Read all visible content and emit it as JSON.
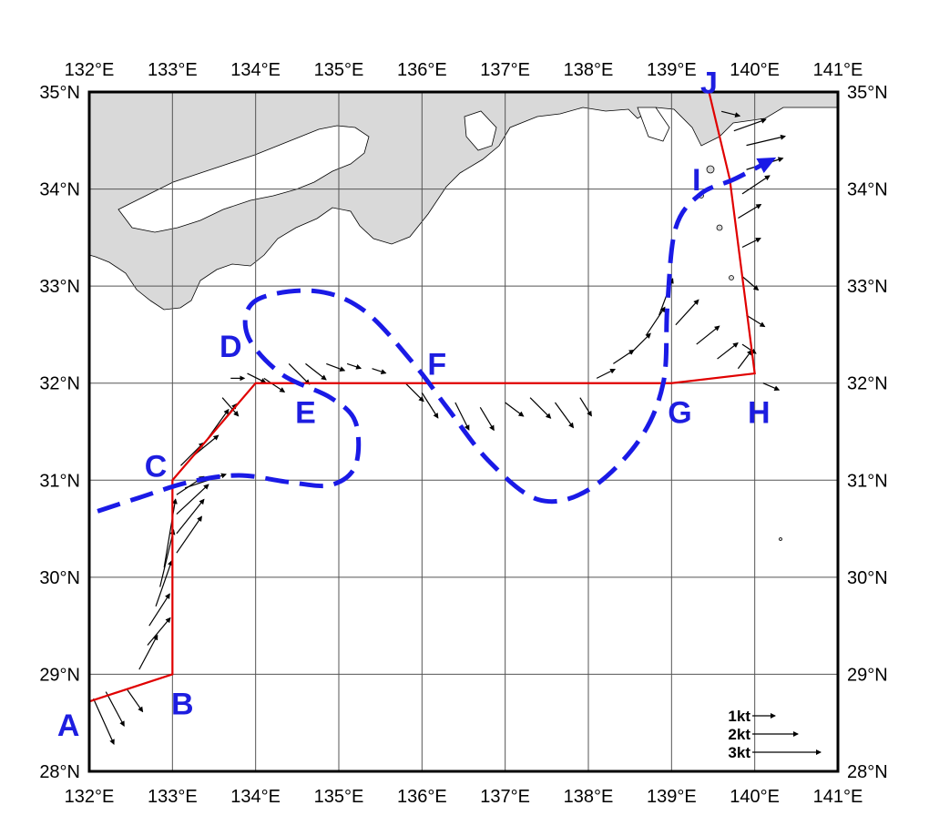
{
  "axes": {
    "lon_labels": [
      "132°E",
      "133°E",
      "134°E",
      "135°E",
      "136°E",
      "137°E",
      "138°E",
      "139°E",
      "140°E",
      "141°E"
    ],
    "lat_labels": [
      "28°N",
      "29°N",
      "30°N",
      "31°N",
      "32°N",
      "33°N",
      "34°N",
      "35°N"
    ],
    "lon_range": [
      132,
      141
    ],
    "lat_range": [
      28,
      35
    ],
    "grid": true
  },
  "colors": {
    "land": "#d9d9d9",
    "survey_line": "#e00000",
    "current_path": "#1a1ae6",
    "point_labels": "#1d1de0",
    "vectors": "#000000"
  },
  "survey_route": {
    "points": [
      {
        "name": "A",
        "lon": 132.0,
        "lat": 28.72
      },
      {
        "name": "B",
        "lon": 133.0,
        "lat": 29.0
      },
      {
        "name": "C",
        "lon": 133.0,
        "lat": 31.0
      },
      {
        "name": "D",
        "lon": 134.0,
        "lat": 32.0
      },
      {
        "name": "E",
        "lon": 134.7,
        "lat": 32.0
      },
      {
        "name": "F",
        "lon": 136.0,
        "lat": 32.0
      },
      {
        "name": "G",
        "lon": 139.0,
        "lat": 32.0
      },
      {
        "name": "H",
        "lon": 140.0,
        "lat": 32.1
      },
      {
        "name": "I",
        "lon": 139.7,
        "lat": 34.1
      },
      {
        "name": "J",
        "lon": 139.45,
        "lat": 35.0
      }
    ]
  },
  "point_labels": [
    {
      "text": "A",
      "lon": 131.75,
      "lat": 28.48
    },
    {
      "text": "B",
      "lon": 133.12,
      "lat": 28.7
    },
    {
      "text": "C",
      "lon": 132.8,
      "lat": 31.15
    },
    {
      "text": "D",
      "lon": 133.7,
      "lat": 32.38
    },
    {
      "text": "E",
      "lon": 134.6,
      "lat": 31.7
    },
    {
      "text": "F",
      "lon": 136.18,
      "lat": 32.2
    },
    {
      "text": "G",
      "lon": 139.1,
      "lat": 31.7
    },
    {
      "text": "H",
      "lon": 140.05,
      "lat": 31.7
    },
    {
      "text": "I",
      "lon": 139.3,
      "lat": 34.1
    },
    {
      "text": "J",
      "lon": 139.45,
      "lat": 35.1
    }
  ],
  "kuroshio_path": [
    [
      132.1,
      30.68
    ],
    [
      132.6,
      30.82
    ],
    [
      133.2,
      30.98
    ],
    [
      133.8,
      31.05
    ],
    [
      134.4,
      30.98
    ],
    [
      134.9,
      30.95
    ],
    [
      135.2,
      31.15
    ],
    [
      135.2,
      31.6
    ],
    [
      134.9,
      31.85
    ],
    [
      134.3,
      32.1
    ],
    [
      133.9,
      32.5
    ],
    [
      134.0,
      32.85
    ],
    [
      134.7,
      32.95
    ],
    [
      135.3,
      32.75
    ],
    [
      135.9,
      32.2
    ],
    [
      136.3,
      31.75
    ],
    [
      136.8,
      31.2
    ],
    [
      137.4,
      30.8
    ],
    [
      138.0,
      30.9
    ],
    [
      138.6,
      31.4
    ],
    [
      138.9,
      32.0
    ],
    [
      138.95,
      32.8
    ],
    [
      139.05,
      33.6
    ],
    [
      139.35,
      33.95
    ],
    [
      139.75,
      34.1
    ],
    [
      140.2,
      34.3
    ]
  ],
  "current_vectors": [
    [
      132.05,
      28.75,
      0.9,
      -2.0
    ],
    [
      132.2,
      28.82,
      0.8,
      -1.5
    ],
    [
      132.45,
      28.85,
      0.7,
      -1.0
    ],
    [
      132.6,
      29.05,
      0.8,
      1.5
    ],
    [
      132.7,
      29.3,
      1.0,
      1.2
    ],
    [
      132.72,
      29.5,
      0.9,
      1.4
    ],
    [
      132.8,
      29.7,
      0.7,
      2.0
    ],
    [
      132.85,
      29.9,
      0.6,
      2.5
    ],
    [
      132.9,
      30.1,
      0.5,
      3.0
    ],
    [
      133.05,
      30.25,
      1.1,
      1.6
    ],
    [
      133.05,
      30.45,
      1.2,
      1.5
    ],
    [
      133.05,
      30.65,
      1.4,
      1.3
    ],
    [
      133.05,
      30.85,
      1.2,
      0.8
    ],
    [
      133.15,
      30.92,
      1.8,
      0.6
    ],
    [
      133.1,
      31.15,
      1.0,
      1.0
    ],
    [
      133.25,
      31.25,
      1.1,
      0.9
    ],
    [
      133.4,
      31.4,
      1.0,
      1.4
    ],
    [
      133.55,
      31.55,
      0.8,
      1.0
    ],
    [
      133.6,
      31.85,
      0.7,
      -0.8
    ],
    [
      133.7,
      32.05,
      0.6,
      0.0
    ],
    [
      133.9,
      32.1,
      0.8,
      -0.4
    ],
    [
      134.1,
      32.05,
      0.9,
      -0.6
    ],
    [
      134.4,
      32.2,
      0.9,
      -0.9
    ],
    [
      134.6,
      32.2,
      0.9,
      -0.7
    ],
    [
      134.85,
      32.2,
      0.8,
      -0.3
    ],
    [
      135.1,
      32.2,
      0.6,
      -0.2
    ],
    [
      135.4,
      32.15,
      0.6,
      -0.2
    ],
    [
      135.8,
      32.0,
      0.8,
      -0.8
    ],
    [
      136.0,
      31.9,
      0.7,
      -1.1
    ],
    [
      136.4,
      31.8,
      0.6,
      -1.2
    ],
    [
      136.7,
      31.75,
      0.6,
      -1.0
    ],
    [
      137.0,
      31.8,
      0.8,
      -0.6
    ],
    [
      137.3,
      31.85,
      0.9,
      -0.9
    ],
    [
      137.6,
      31.8,
      0.8,
      -1.1
    ],
    [
      137.9,
      31.85,
      0.5,
      -0.8
    ],
    [
      138.1,
      32.05,
      0.8,
      0.4
    ],
    [
      138.3,
      32.2,
      0.9,
      0.6
    ],
    [
      138.5,
      32.3,
      0.9,
      0.9
    ],
    [
      138.7,
      32.5,
      0.8,
      1.2
    ],
    [
      138.85,
      32.7,
      0.6,
      1.6
    ],
    [
      139.05,
      32.6,
      1.0,
      1.1
    ],
    [
      139.3,
      32.4,
      1.0,
      0.8
    ],
    [
      139.55,
      32.25,
      0.9,
      0.7
    ],
    [
      139.8,
      32.15,
      0.6,
      0.8
    ],
    [
      140.1,
      32.0,
      0.7,
      -0.3
    ],
    [
      139.85,
      32.4,
      0.6,
      -0.4
    ],
    [
      139.9,
      32.7,
      0.8,
      -0.5
    ],
    [
      139.85,
      33.1,
      0.7,
      -0.6
    ],
    [
      139.85,
      33.4,
      0.8,
      0.4
    ],
    [
      139.8,
      33.7,
      1.0,
      0.6
    ],
    [
      139.85,
      33.95,
      1.2,
      0.8
    ],
    [
      139.9,
      34.2,
      1.6,
      0.5
    ],
    [
      139.9,
      34.45,
      1.7,
      0.4
    ],
    [
      139.75,
      34.6,
      1.4,
      0.5
    ],
    [
      139.6,
      34.8,
      0.8,
      -0.2
    ]
  ],
  "legend": {
    "entries": [
      {
        "label": "1kt",
        "kt": 1
      },
      {
        "label": "2kt",
        "kt": 2
      },
      {
        "label": "3kt",
        "kt": 3
      }
    ]
  }
}
